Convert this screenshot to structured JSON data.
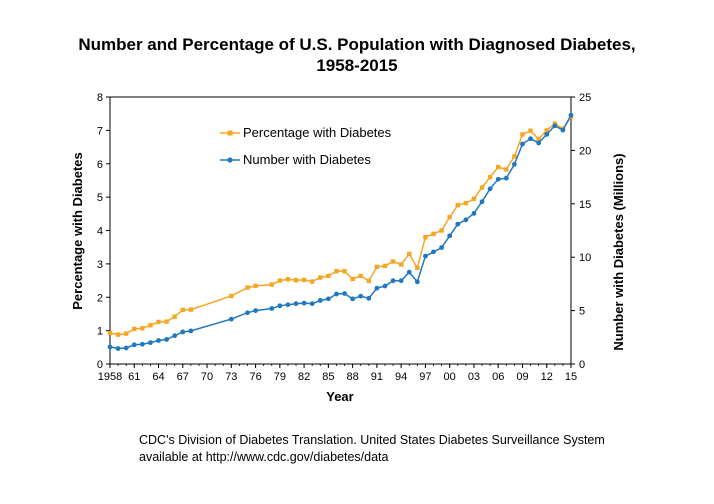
{
  "chart_data": {
    "type": "line",
    "title_line1": "Number and Percentage of U.S. Population with Diagnosed Diabetes,",
    "title_line2": "1958-2015",
    "xlabel": "Year",
    "ylabel_left": "Percentage with Diabetes",
    "ylabel_right": "Number with Diabetes (Millions)",
    "xlim": [
      1958,
      2015
    ],
    "ylim_left": [
      0,
      8
    ],
    "ylim_right": [
      0,
      25
    ],
    "x_ticks": [
      {
        "value": 1958,
        "label": "1958"
      },
      {
        "value": 1961,
        "label": "61"
      },
      {
        "value": 1964,
        "label": "64"
      },
      {
        "value": 1967,
        "label": "67"
      },
      {
        "value": 1970,
        "label": "70"
      },
      {
        "value": 1973,
        "label": "73"
      },
      {
        "value": 1976,
        "label": "76"
      },
      {
        "value": 1979,
        "label": "79"
      },
      {
        "value": 1982,
        "label": "82"
      },
      {
        "value": 1985,
        "label": "85"
      },
      {
        "value": 1988,
        "label": "88"
      },
      {
        "value": 1991,
        "label": "91"
      },
      {
        "value": 1994,
        "label": "94"
      },
      {
        "value": 1997,
        "label": "97"
      },
      {
        "value": 2000,
        "label": "00"
      },
      {
        "value": 2003,
        "label": "03"
      },
      {
        "value": 2006,
        "label": "06"
      },
      {
        "value": 2009,
        "label": "09"
      },
      {
        "value": 2012,
        "label": "12"
      },
      {
        "value": 2015,
        "label": "15"
      }
    ],
    "y_ticks_left": [
      "0",
      "1",
      "2",
      "3",
      "4",
      "5",
      "6",
      "7",
      "8"
    ],
    "y_ticks_right": [
      "0",
      "5",
      "10",
      "15",
      "20",
      "25"
    ],
    "series": [
      {
        "name": "Percentage with Diabetes",
        "axis": "left",
        "color": "#F5A623",
        "points": [
          [
            1958,
            0.93
          ],
          [
            1959,
            0.88
          ],
          [
            1960,
            0.91
          ],
          [
            1961,
            1.05
          ],
          [
            1962,
            1.07
          ],
          [
            1963,
            1.16
          ],
          [
            1964,
            1.26
          ],
          [
            1965,
            1.27
          ],
          [
            1966,
            1.42
          ],
          [
            1967,
            1.62
          ],
          [
            1968,
            1.63
          ],
          [
            1973,
            2.04
          ],
          [
            1975,
            2.29
          ],
          [
            1976,
            2.34
          ],
          [
            1978,
            2.38
          ],
          [
            1979,
            2.5
          ],
          [
            1980,
            2.54
          ],
          [
            1981,
            2.51
          ],
          [
            1982,
            2.52
          ],
          [
            1983,
            2.47
          ],
          [
            1984,
            2.59
          ],
          [
            1985,
            2.64
          ],
          [
            1986,
            2.78
          ],
          [
            1987,
            2.78
          ],
          [
            1988,
            2.55
          ],
          [
            1989,
            2.64
          ],
          [
            1990,
            2.49
          ],
          [
            1991,
            2.91
          ],
          [
            1992,
            2.94
          ],
          [
            1993,
            3.07
          ],
          [
            1994,
            2.98
          ],
          [
            1995,
            3.3
          ],
          [
            1996,
            2.88
          ],
          [
            1997,
            3.8
          ],
          [
            1998,
            3.9
          ],
          [
            1999,
            4.0
          ],
          [
            2000,
            4.4
          ],
          [
            2001,
            4.76
          ],
          [
            2002,
            4.82
          ],
          [
            2003,
            4.95
          ],
          [
            2004,
            5.29
          ],
          [
            2005,
            5.6
          ],
          [
            2006,
            5.9
          ],
          [
            2007,
            5.83
          ],
          [
            2008,
            6.22
          ],
          [
            2009,
            6.88
          ],
          [
            2010,
            6.99
          ],
          [
            2011,
            6.74
          ],
          [
            2012,
            7.0
          ],
          [
            2013,
            7.2
          ],
          [
            2014,
            7.05
          ],
          [
            2015,
            7.4
          ]
        ]
      },
      {
        "name": "Number with Diabetes",
        "axis": "right",
        "color": "#1F78C1",
        "points": [
          [
            1958,
            1.6
          ],
          [
            1959,
            1.45
          ],
          [
            1960,
            1.5
          ],
          [
            1961,
            1.8
          ],
          [
            1962,
            1.85
          ],
          [
            1963,
            2.0
          ],
          [
            1964,
            2.2
          ],
          [
            1965,
            2.3
          ],
          [
            1966,
            2.65
          ],
          [
            1967,
            3.0
          ],
          [
            1968,
            3.1
          ],
          [
            1973,
            4.2
          ],
          [
            1975,
            4.8
          ],
          [
            1976,
            5.0
          ],
          [
            1978,
            5.2
          ],
          [
            1979,
            5.45
          ],
          [
            1980,
            5.55
          ],
          [
            1981,
            5.65
          ],
          [
            1982,
            5.7
          ],
          [
            1983,
            5.65
          ],
          [
            1984,
            5.95
          ],
          [
            1985,
            6.1
          ],
          [
            1986,
            6.55
          ],
          [
            1987,
            6.6
          ],
          [
            1988,
            6.1
          ],
          [
            1989,
            6.35
          ],
          [
            1990,
            6.15
          ],
          [
            1991,
            7.1
          ],
          [
            1992,
            7.3
          ],
          [
            1993,
            7.8
          ],
          [
            1994,
            7.8
          ],
          [
            1995,
            8.6
          ],
          [
            1996,
            7.7
          ],
          [
            1997,
            10.1
          ],
          [
            1998,
            10.5
          ],
          [
            1999,
            10.9
          ],
          [
            2000,
            12.0
          ],
          [
            2001,
            13.1
          ],
          [
            2002,
            13.5
          ],
          [
            2003,
            14.1
          ],
          [
            2004,
            15.2
          ],
          [
            2005,
            16.4
          ],
          [
            2006,
            17.3
          ],
          [
            2007,
            17.4
          ],
          [
            2008,
            18.7
          ],
          [
            2009,
            20.6
          ],
          [
            2010,
            21.1
          ],
          [
            2011,
            20.7
          ],
          [
            2012,
            21.5
          ],
          [
            2013,
            22.3
          ],
          [
            2014,
            21.9
          ],
          [
            2015,
            23.3
          ]
        ]
      }
    ],
    "legend_position": "upper-left-inside"
  },
  "source": {
    "line1": "CDC's Division of Diabetes Translation. United States Diabetes Surveillance System",
    "line2": "available at http://www.cdc.gov/diabetes/data"
  }
}
